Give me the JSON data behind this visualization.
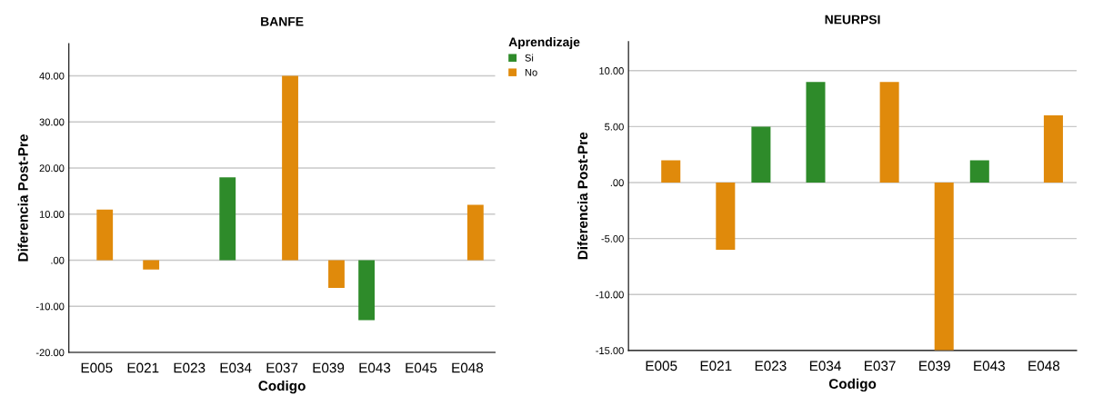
{
  "chart_data": [
    {
      "type": "bar",
      "title": "BANFE",
      "xlabel": "Codigo",
      "ylabel": "Diferencia Post-Pre",
      "legend_title": "Aprendizaje",
      "legend": "right",
      "categories": [
        "E005",
        "E021",
        "E023",
        "E034",
        "E037",
        "E039",
        "E043",
        "E045",
        "E048"
      ],
      "series": [
        {
          "name": "Si",
          "color": "#2e8b2a",
          "values": [
            null,
            null,
            null,
            18,
            null,
            null,
            -13,
            null,
            null
          ]
        },
        {
          "name": "No",
          "color": "#e08a0b",
          "values": [
            11,
            -2,
            null,
            null,
            40,
            -6,
            null,
            null,
            12
          ]
        }
      ],
      "ylim": [
        -20,
        47
      ],
      "yticks": [
        {
          "value": -20,
          "label": "-20.00"
        },
        {
          "value": -10,
          "label": "-10.00"
        },
        {
          "value": 0,
          "label": ".00"
        },
        {
          "value": 10,
          "label": "10.00"
        },
        {
          "value": 20,
          "label": "20.00"
        },
        {
          "value": 30,
          "label": "30.00"
        },
        {
          "value": 40,
          "label": "40.00"
        }
      ],
      "grid": "y"
    },
    {
      "type": "bar",
      "title": "NEURPSI",
      "xlabel": "Codigo",
      "ylabel": "Diferencia Post-Pre",
      "categories": [
        "E005",
        "E021",
        "E023",
        "E034",
        "E037",
        "E039",
        "E043",
        "E048"
      ],
      "series": [
        {
          "color": "#2e8b2a",
          "values": [
            null,
            null,
            5,
            9,
            null,
            null,
            2,
            null
          ]
        },
        {
          "color": "#e08a0b",
          "values": [
            2,
            -6,
            null,
            null,
            9,
            -15,
            null,
            6
          ]
        }
      ],
      "ylim": [
        -15,
        12.6
      ],
      "yticks": [
        {
          "value": -15,
          "label": "-15.00"
        },
        {
          "value": -10,
          "label": "-10.00"
        },
        {
          "value": -5,
          "label": "-5.00"
        },
        {
          "value": 0,
          "label": ".00"
        },
        {
          "value": 5,
          "label": "5.00"
        },
        {
          "value": 10,
          "label": "10.00"
        }
      ],
      "grid": "y"
    }
  ]
}
